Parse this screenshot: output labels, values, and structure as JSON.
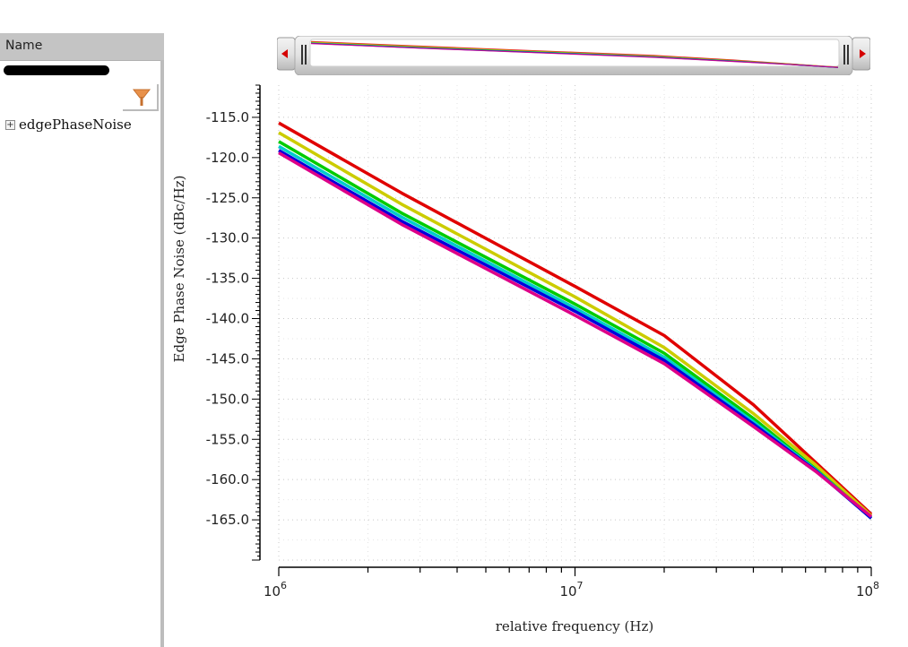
{
  "sidebar": {
    "header_label": "Name",
    "search_value": "",
    "filter_icon": "funnel-icon",
    "tree": [
      {
        "label": "edgePhaseNoise",
        "expander_glyph": "+",
        "expanded": false
      }
    ]
  },
  "overview": {
    "left_arrow_icon": "arrow-left-icon",
    "right_arrow_icon": "arrow-right-icon"
  },
  "chart_data": {
    "type": "line",
    "title": "",
    "xlabel": "relative frequency (Hz)",
    "ylabel": "Edge Phase Noise (dBc/Hz)",
    "xscale": "log",
    "xlim": [
      1000000,
      100000000
    ],
    "ylim": [
      -170.0,
      -111.0
    ],
    "xticks": [
      {
        "value": 1000000,
        "base": "10",
        "exp": "6"
      },
      {
        "value": 10000000,
        "base": "10",
        "exp": "7"
      },
      {
        "value": 100000000,
        "base": "10",
        "exp": "8"
      }
    ],
    "yticks": [
      -115.0,
      -120.0,
      -125.0,
      -130.0,
      -135.0,
      -140.0,
      -145.0,
      -150.0,
      -155.0,
      -160.0,
      -165.0
    ],
    "ytick_labels": [
      "-115.0",
      "-120.0",
      "-125.0",
      "-130.0",
      "-135.0",
      "-140.0",
      "-145.0",
      "-150.0",
      "-155.0",
      "-160.0",
      "-165.0"
    ],
    "grid": true,
    "legend": "none",
    "x": [
      1000000,
      2600000,
      10000000,
      20000000,
      40000000,
      65000000,
      100000000
    ],
    "series": [
      {
        "name": "red",
        "color": "#e00000",
        "values": [
          -115.7,
          -124.4,
          -136.0,
          -142.1,
          -150.7,
          -157.9,
          -164.3
        ]
      },
      {
        "name": "yellow",
        "color": "#cccc00",
        "values": [
          -116.9,
          -125.8,
          -137.3,
          -143.6,
          -151.8,
          -158.2,
          -164.5
        ]
      },
      {
        "name": "green",
        "color": "#00cc00",
        "values": [
          -118.0,
          -126.9,
          -138.2,
          -144.3,
          -152.4,
          -158.7,
          -164.8
        ]
      },
      {
        "name": "cyan",
        "color": "#00cccc",
        "values": [
          -118.6,
          -127.4,
          -138.7,
          -144.8,
          -152.8,
          -158.8,
          -164.8
        ]
      },
      {
        "name": "blue",
        "color": "#0000dd",
        "values": [
          -119.1,
          -127.9,
          -139.1,
          -145.2,
          -153.1,
          -158.9,
          -164.8
        ]
      },
      {
        "name": "magenta",
        "color": "#dd0088",
        "values": [
          -119.4,
          -128.3,
          -139.6,
          -145.6,
          -153.4,
          -159.0,
          -164.6
        ]
      }
    ]
  }
}
